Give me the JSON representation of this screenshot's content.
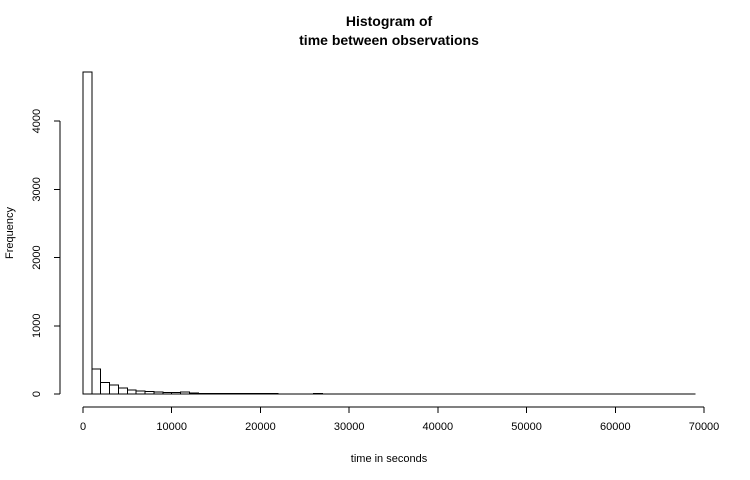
{
  "chart_data": {
    "type": "histogram",
    "title": [
      "Histogram of",
      "time between observations"
    ],
    "xlabel": "time in seconds",
    "ylabel": "Frequency",
    "bin_width": 1000,
    "bin_start": 0,
    "bin_end": 69000,
    "counts": [
      4720,
      370,
      170,
      130,
      90,
      60,
      45,
      38,
      30,
      25,
      20,
      30,
      18,
      10,
      8,
      7,
      6,
      10,
      5,
      5,
      4,
      7,
      3,
      3,
      3,
      3,
      4,
      2,
      2,
      2,
      3,
      2,
      2,
      2,
      2,
      1,
      1,
      2,
      1,
      1,
      1,
      1,
      1,
      1,
      1,
      1,
      1,
      1,
      1,
      1,
      1,
      1,
      1,
      1,
      1,
      1,
      1,
      1,
      1,
      1,
      1,
      1,
      1,
      1,
      1,
      1,
      1,
      1,
      1
    ],
    "xlim": [
      0,
      70000
    ],
    "ylim": [
      0,
      4720
    ],
    "x_ticks": [
      0,
      10000,
      20000,
      30000,
      40000,
      50000,
      60000,
      70000
    ],
    "x_tick_labels": [
      "0",
      "10000",
      "20000",
      "30000",
      "40000",
      "50000",
      "60000",
      "70000"
    ],
    "y_ticks": [
      0,
      1000,
      2000,
      3000,
      4000
    ],
    "y_tick_labels": [
      "0",
      "1000",
      "2000",
      "3000",
      "4000"
    ],
    "grid": false,
    "colors": {
      "bar_fill": "#ffffff",
      "bar_stroke": "#000000",
      "axis": "#000000",
      "text": "#000000"
    }
  }
}
